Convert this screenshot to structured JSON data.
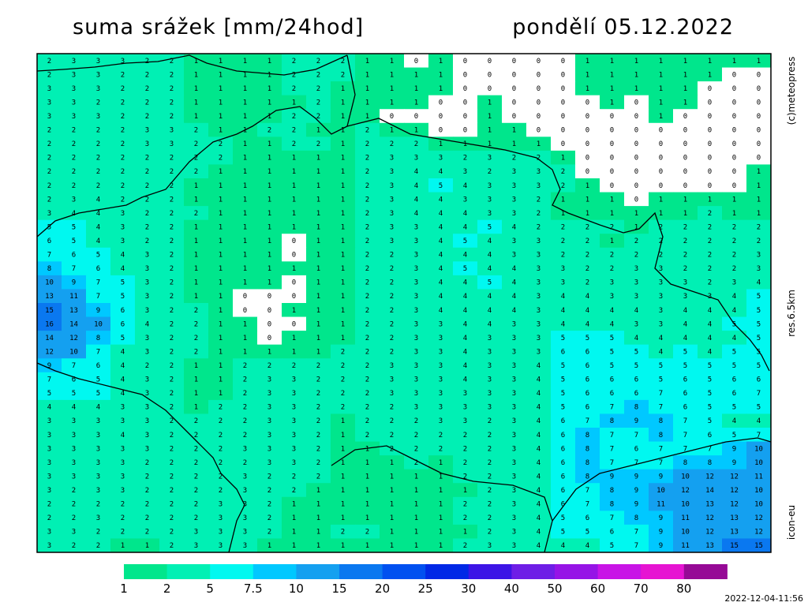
{
  "header": {
    "title": "suma srážek [mm/24hod]",
    "date": "pondělí 05.12.2022"
  },
  "labels": {
    "copyright": "(c)meteopress",
    "resolution": "res.6.5km",
    "model": "icon-eu",
    "timestamp": "2022-12-04-11:56"
  },
  "legend": {
    "bounds": [
      1,
      2,
      5,
      7.5,
      10,
      15,
      20,
      25,
      30,
      40,
      50,
      60,
      70,
      80
    ],
    "colors": [
      "#00e68c",
      "#00f0b4",
      "#00f8f0",
      "#00c8ff",
      "#14a0f0",
      "#0a78f0",
      "#0050f0",
      "#0028e6",
      "#3c14e6",
      "#6e1ee6",
      "#9614e6",
      "#c814e6",
      "#e614d2",
      "#960a96"
    ]
  },
  "map": {
    "grid": [
      [
        2,
        3,
        3,
        3,
        2,
        2,
        1,
        1,
        1,
        1,
        2,
        2,
        2,
        1,
        1,
        0,
        1,
        0,
        0,
        0,
        0,
        0,
        1,
        1,
        1,
        1,
        1,
        1,
        1,
        1
      ],
      [
        2,
        3,
        3,
        2,
        2,
        2,
        1,
        1,
        1,
        1,
        2,
        2,
        2,
        1,
        1,
        1,
        1,
        0,
        0,
        0,
        0,
        0,
        1,
        1,
        1,
        1,
        1,
        1,
        0,
        0
      ],
      [
        3,
        3,
        3,
        2,
        2,
        2,
        1,
        1,
        1,
        1,
        2,
        2,
        1,
        1,
        1,
        1,
        1,
        0,
        0,
        0,
        0,
        0,
        1,
        1,
        1,
        1,
        1,
        0,
        0,
        0
      ],
      [
        3,
        3,
        2,
        2,
        2,
        2,
        1,
        1,
        1,
        1,
        1,
        2,
        1,
        1,
        1,
        1,
        0,
        0,
        1,
        0,
        0,
        0,
        0,
        1,
        0,
        1,
        1,
        0,
        0,
        0
      ],
      [
        3,
        3,
        3,
        2,
        2,
        2,
        1,
        1,
        1,
        1,
        2,
        2,
        1,
        1,
        0,
        0,
        0,
        0,
        1,
        0,
        0,
        0,
        0,
        0,
        0,
        1,
        0,
        0,
        0,
        0
      ],
      [
        2,
        2,
        2,
        2,
        3,
        3,
        2,
        1,
        1,
        2,
        2,
        1,
        1,
        2,
        1,
        1,
        0,
        0,
        1,
        1,
        0,
        0,
        0,
        0,
        0,
        0,
        0,
        0,
        0,
        0
      ],
      [
        2,
        2,
        2,
        2,
        3,
        3,
        2,
        2,
        1,
        1,
        2,
        2,
        1,
        2,
        2,
        2,
        1,
        1,
        1,
        1,
        1,
        0,
        0,
        0,
        0,
        0,
        0,
        0,
        0,
        0
      ],
      [
        2,
        2,
        2,
        2,
        2,
        2,
        2,
        2,
        1,
        1,
        1,
        1,
        1,
        2,
        3,
        3,
        3,
        2,
        3,
        2,
        2,
        1,
        0,
        0,
        0,
        0,
        0,
        0,
        0,
        0
      ],
      [
        2,
        2,
        2,
        2,
        2,
        2,
        2,
        1,
        1,
        1,
        1,
        1,
        1,
        2,
        3,
        4,
        4,
        3,
        2,
        3,
        3,
        2,
        0,
        0,
        0,
        0,
        0,
        0,
        0,
        1
      ],
      [
        2,
        2,
        2,
        2,
        2,
        2,
        1,
        1,
        1,
        1,
        1,
        1,
        1,
        2,
        3,
        4,
        5,
        4,
        3,
        3,
        3,
        2,
        1,
        0,
        0,
        0,
        0,
        0,
        0,
        1
      ],
      [
        2,
        3,
        4,
        2,
        2,
        2,
        1,
        1,
        1,
        1,
        1,
        1,
        1,
        2,
        3,
        4,
        4,
        3,
        3,
        3,
        2,
        1,
        1,
        1,
        0,
        1,
        1,
        1,
        1,
        1
      ],
      [
        3,
        4,
        4,
        3,
        2,
        2,
        2,
        1,
        1,
        1,
        1,
        1,
        1,
        2,
        3,
        4,
        4,
        4,
        3,
        3,
        2,
        1,
        1,
        1,
        1,
        1,
        1,
        2,
        1,
        1
      ],
      [
        5,
        5,
        4,
        3,
        2,
        2,
        1,
        1,
        1,
        1,
        1,
        1,
        1,
        2,
        3,
        3,
        4,
        4,
        5,
        4,
        2,
        2,
        2,
        2,
        1,
        2,
        2,
        2,
        2,
        2
      ],
      [
        6,
        5,
        4,
        3,
        2,
        2,
        1,
        1,
        1,
        1,
        0,
        1,
        1,
        2,
        3,
        3,
        4,
        5,
        4,
        3,
        3,
        2,
        2,
        1,
        2,
        2,
        2,
        2,
        2,
        2
      ],
      [
        7,
        6,
        5,
        4,
        3,
        2,
        1,
        1,
        1,
        1,
        0,
        1,
        1,
        2,
        2,
        3,
        4,
        4,
        4,
        3,
        3,
        2,
        2,
        2,
        2,
        2,
        2,
        2,
        2,
        3
      ],
      [
        8,
        7,
        6,
        4,
        3,
        2,
        1,
        1,
        1,
        1,
        1,
        1,
        1,
        2,
        2,
        3,
        4,
        5,
        4,
        4,
        3,
        3,
        2,
        2,
        3,
        3,
        2,
        2,
        2,
        3
      ],
      [
        10,
        9,
        7,
        5,
        3,
        2,
        1,
        1,
        1,
        1,
        0,
        1,
        1,
        2,
        2,
        3,
        4,
        4,
        5,
        4,
        3,
        3,
        2,
        3,
        3,
        3,
        3,
        2,
        3,
        4
      ],
      [
        13,
        11,
        7,
        5,
        3,
        2,
        1,
        1,
        0,
        0,
        0,
        1,
        1,
        2,
        2,
        3,
        4,
        4,
        4,
        4,
        3,
        4,
        4,
        3,
        3,
        3,
        3,
        3,
        4,
        5
      ],
      [
        15,
        13,
        9,
        6,
        3,
        2,
        2,
        1,
        0,
        0,
        1,
        1,
        1,
        2,
        2,
        3,
        4,
        4,
        4,
        4,
        3,
        4,
        4,
        4,
        4,
        3,
        4,
        4,
        4,
        5
      ],
      [
        16,
        14,
        10,
        6,
        4,
        2,
        2,
        1,
        1,
        0,
        0,
        1,
        1,
        2,
        2,
        3,
        3,
        4,
        4,
        3,
        3,
        4,
        4,
        4,
        3,
        3,
        4,
        4,
        5,
        5
      ],
      [
        14,
        12,
        8,
        5,
        3,
        2,
        2,
        1,
        1,
        0,
        1,
        1,
        1,
        2,
        2,
        3,
        3,
        4,
        3,
        3,
        3,
        5,
        5,
        5,
        4,
        4,
        4,
        4,
        4,
        5
      ],
      [
        12,
        10,
        7,
        4,
        3,
        2,
        2,
        1,
        1,
        1,
        1,
        1,
        2,
        2,
        2,
        3,
        3,
        4,
        3,
        3,
        3,
        6,
        6,
        5,
        5,
        4,
        5,
        4,
        5,
        5
      ],
      [
        9,
        7,
        6,
        4,
        2,
        2,
        1,
        1,
        2,
        2,
        2,
        2,
        2,
        2,
        3,
        3,
        3,
        4,
        3,
        3,
        4,
        5,
        6,
        5,
        5,
        5,
        5,
        5,
        5,
        5
      ],
      [
        7,
        6,
        5,
        4,
        3,
        2,
        1,
        1,
        2,
        3,
        3,
        2,
        2,
        2,
        3,
        3,
        3,
        4,
        3,
        3,
        4,
        5,
        6,
        6,
        6,
        5,
        6,
        5,
        6,
        6
      ],
      [
        5,
        5,
        5,
        4,
        3,
        2,
        1,
        1,
        2,
        3,
        3,
        2,
        2,
        2,
        3,
        3,
        3,
        3,
        3,
        3,
        4,
        5,
        6,
        6,
        6,
        7,
        6,
        5,
        6,
        7
      ],
      [
        4,
        4,
        4,
        3,
        3,
        2,
        1,
        2,
        2,
        3,
        3,
        2,
        2,
        2,
        2,
        3,
        3,
        3,
        3,
        3,
        4,
        5,
        6,
        7,
        8,
        7,
        6,
        5,
        5,
        5
      ],
      [
        3,
        3,
        3,
        3,
        3,
        2,
        2,
        2,
        2,
        3,
        3,
        2,
        1,
        2,
        2,
        2,
        3,
        3,
        2,
        3,
        4,
        6,
        7,
        8,
        9,
        8,
        7,
        5,
        4,
        4
      ],
      [
        3,
        3,
        3,
        4,
        3,
        2,
        2,
        2,
        2,
        3,
        3,
        2,
        1,
        2,
        2,
        2,
        2,
        2,
        2,
        3,
        4,
        6,
        8,
        7,
        7,
        8,
        7,
        6,
        5,
        7
      ],
      [
        3,
        3,
        3,
        3,
        3,
        2,
        2,
        2,
        3,
        3,
        3,
        2,
        1,
        1,
        2,
        2,
        2,
        2,
        2,
        3,
        4,
        6,
        8,
        7,
        6,
        7,
        7,
        7,
        9,
        10
      ],
      [
        3,
        3,
        3,
        3,
        2,
        2,
        2,
        2,
        2,
        3,
        3,
        2,
        1,
        1,
        1,
        2,
        1,
        2,
        2,
        3,
        4,
        6,
        8,
        7,
        7,
        7,
        8,
        8,
        9,
        10
      ],
      [
        3,
        3,
        3,
        3,
        2,
        2,
        2,
        2,
        3,
        2,
        2,
        2,
        1,
        1,
        1,
        1,
        1,
        2,
        2,
        3,
        4,
        6,
        8,
        9,
        9,
        9,
        10,
        12,
        12,
        11
      ],
      [
        3,
        2,
        3,
        3,
        2,
        2,
        2,
        2,
        3,
        2,
        2,
        1,
        1,
        1,
        1,
        1,
        1,
        1,
        2,
        3,
        4,
        6,
        7,
        8,
        9,
        10,
        12,
        14,
        12,
        10
      ],
      [
        2,
        2,
        2,
        2,
        2,
        2,
        2,
        3,
        3,
        2,
        1,
        1,
        1,
        1,
        1,
        1,
        1,
        2,
        2,
        3,
        4,
        6,
        7,
        8,
        9,
        11,
        10,
        13,
        12,
        10
      ],
      [
        2,
        2,
        3,
        2,
        2,
        2,
        2,
        3,
        3,
        2,
        1,
        1,
        1,
        1,
        1,
        1,
        1,
        2,
        2,
        3,
        4,
        5,
        6,
        7,
        8,
        9,
        11,
        12,
        13,
        12
      ],
      [
        3,
        3,
        2,
        2,
        2,
        2,
        3,
        3,
        3,
        2,
        1,
        1,
        2,
        2,
        1,
        1,
        1,
        1,
        2,
        3,
        4,
        5,
        5,
        6,
        7,
        9,
        10,
        12,
        13,
        12
      ],
      [
        3,
        2,
        2,
        1,
        1,
        2,
        3,
        3,
        3,
        1,
        1,
        1,
        1,
        1,
        1,
        1,
        1,
        2,
        3,
        3,
        4,
        4,
        4,
        5,
        7,
        9,
        11,
        13,
        15,
        15
      ]
    ]
  }
}
